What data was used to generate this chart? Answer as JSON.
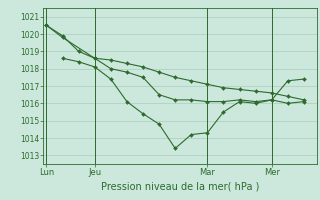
{
  "bg_color": "#cce8dc",
  "grid_color": "#aaccbb",
  "line_color": "#2d6a2d",
  "marker_color": "#2d6a2d",
  "xlabel_text": "Pression niveau de la mer( hPa )",
  "ylim": [
    1012.5,
    1021.5
  ],
  "yticks": [
    1013,
    1014,
    1015,
    1016,
    1017,
    1018,
    1019,
    1020,
    1021
  ],
  "x_tick_labels": [
    "Lun",
    "Jeu",
    "Mar",
    "Mer"
  ],
  "x_tick_positions": [
    0,
    3,
    10,
    14
  ],
  "xlim": [
    -0.2,
    16.8
  ],
  "series1_x": [
    0,
    1,
    3,
    4,
    5,
    6,
    7,
    8,
    9,
    10,
    11,
    12,
    13,
    14,
    15,
    16
  ],
  "series1_y": [
    1020.5,
    1019.8,
    1018.6,
    1018.0,
    1017.8,
    1017.5,
    1016.5,
    1016.2,
    1016.2,
    1016.1,
    1016.1,
    1016.2,
    1016.1,
    1016.2,
    1016.0,
    1016.1
  ],
  "series2_x": [
    0,
    1,
    2,
    3,
    4,
    5,
    6,
    7,
    8,
    9,
    10,
    11,
    12,
    13,
    14,
    15,
    16
  ],
  "series2_y": [
    1020.5,
    1019.9,
    1019.0,
    1018.6,
    1018.5,
    1018.3,
    1018.1,
    1017.8,
    1017.5,
    1017.3,
    1017.1,
    1016.9,
    1016.8,
    1016.7,
    1016.6,
    1016.4,
    1016.2
  ],
  "series3_x": [
    1,
    2,
    3,
    4,
    5,
    6,
    7,
    8,
    9,
    10,
    11,
    12,
    13,
    14,
    15,
    16
  ],
  "series3_y": [
    1018.6,
    1018.4,
    1018.1,
    1017.4,
    1016.1,
    1015.4,
    1014.8,
    1013.4,
    1014.2,
    1014.3,
    1015.5,
    1016.1,
    1016.0,
    1016.2,
    1017.3,
    1017.4
  ],
  "xlabel_fontsize": 7,
  "ytick_fontsize": 5.5,
  "xtick_fontsize": 6
}
